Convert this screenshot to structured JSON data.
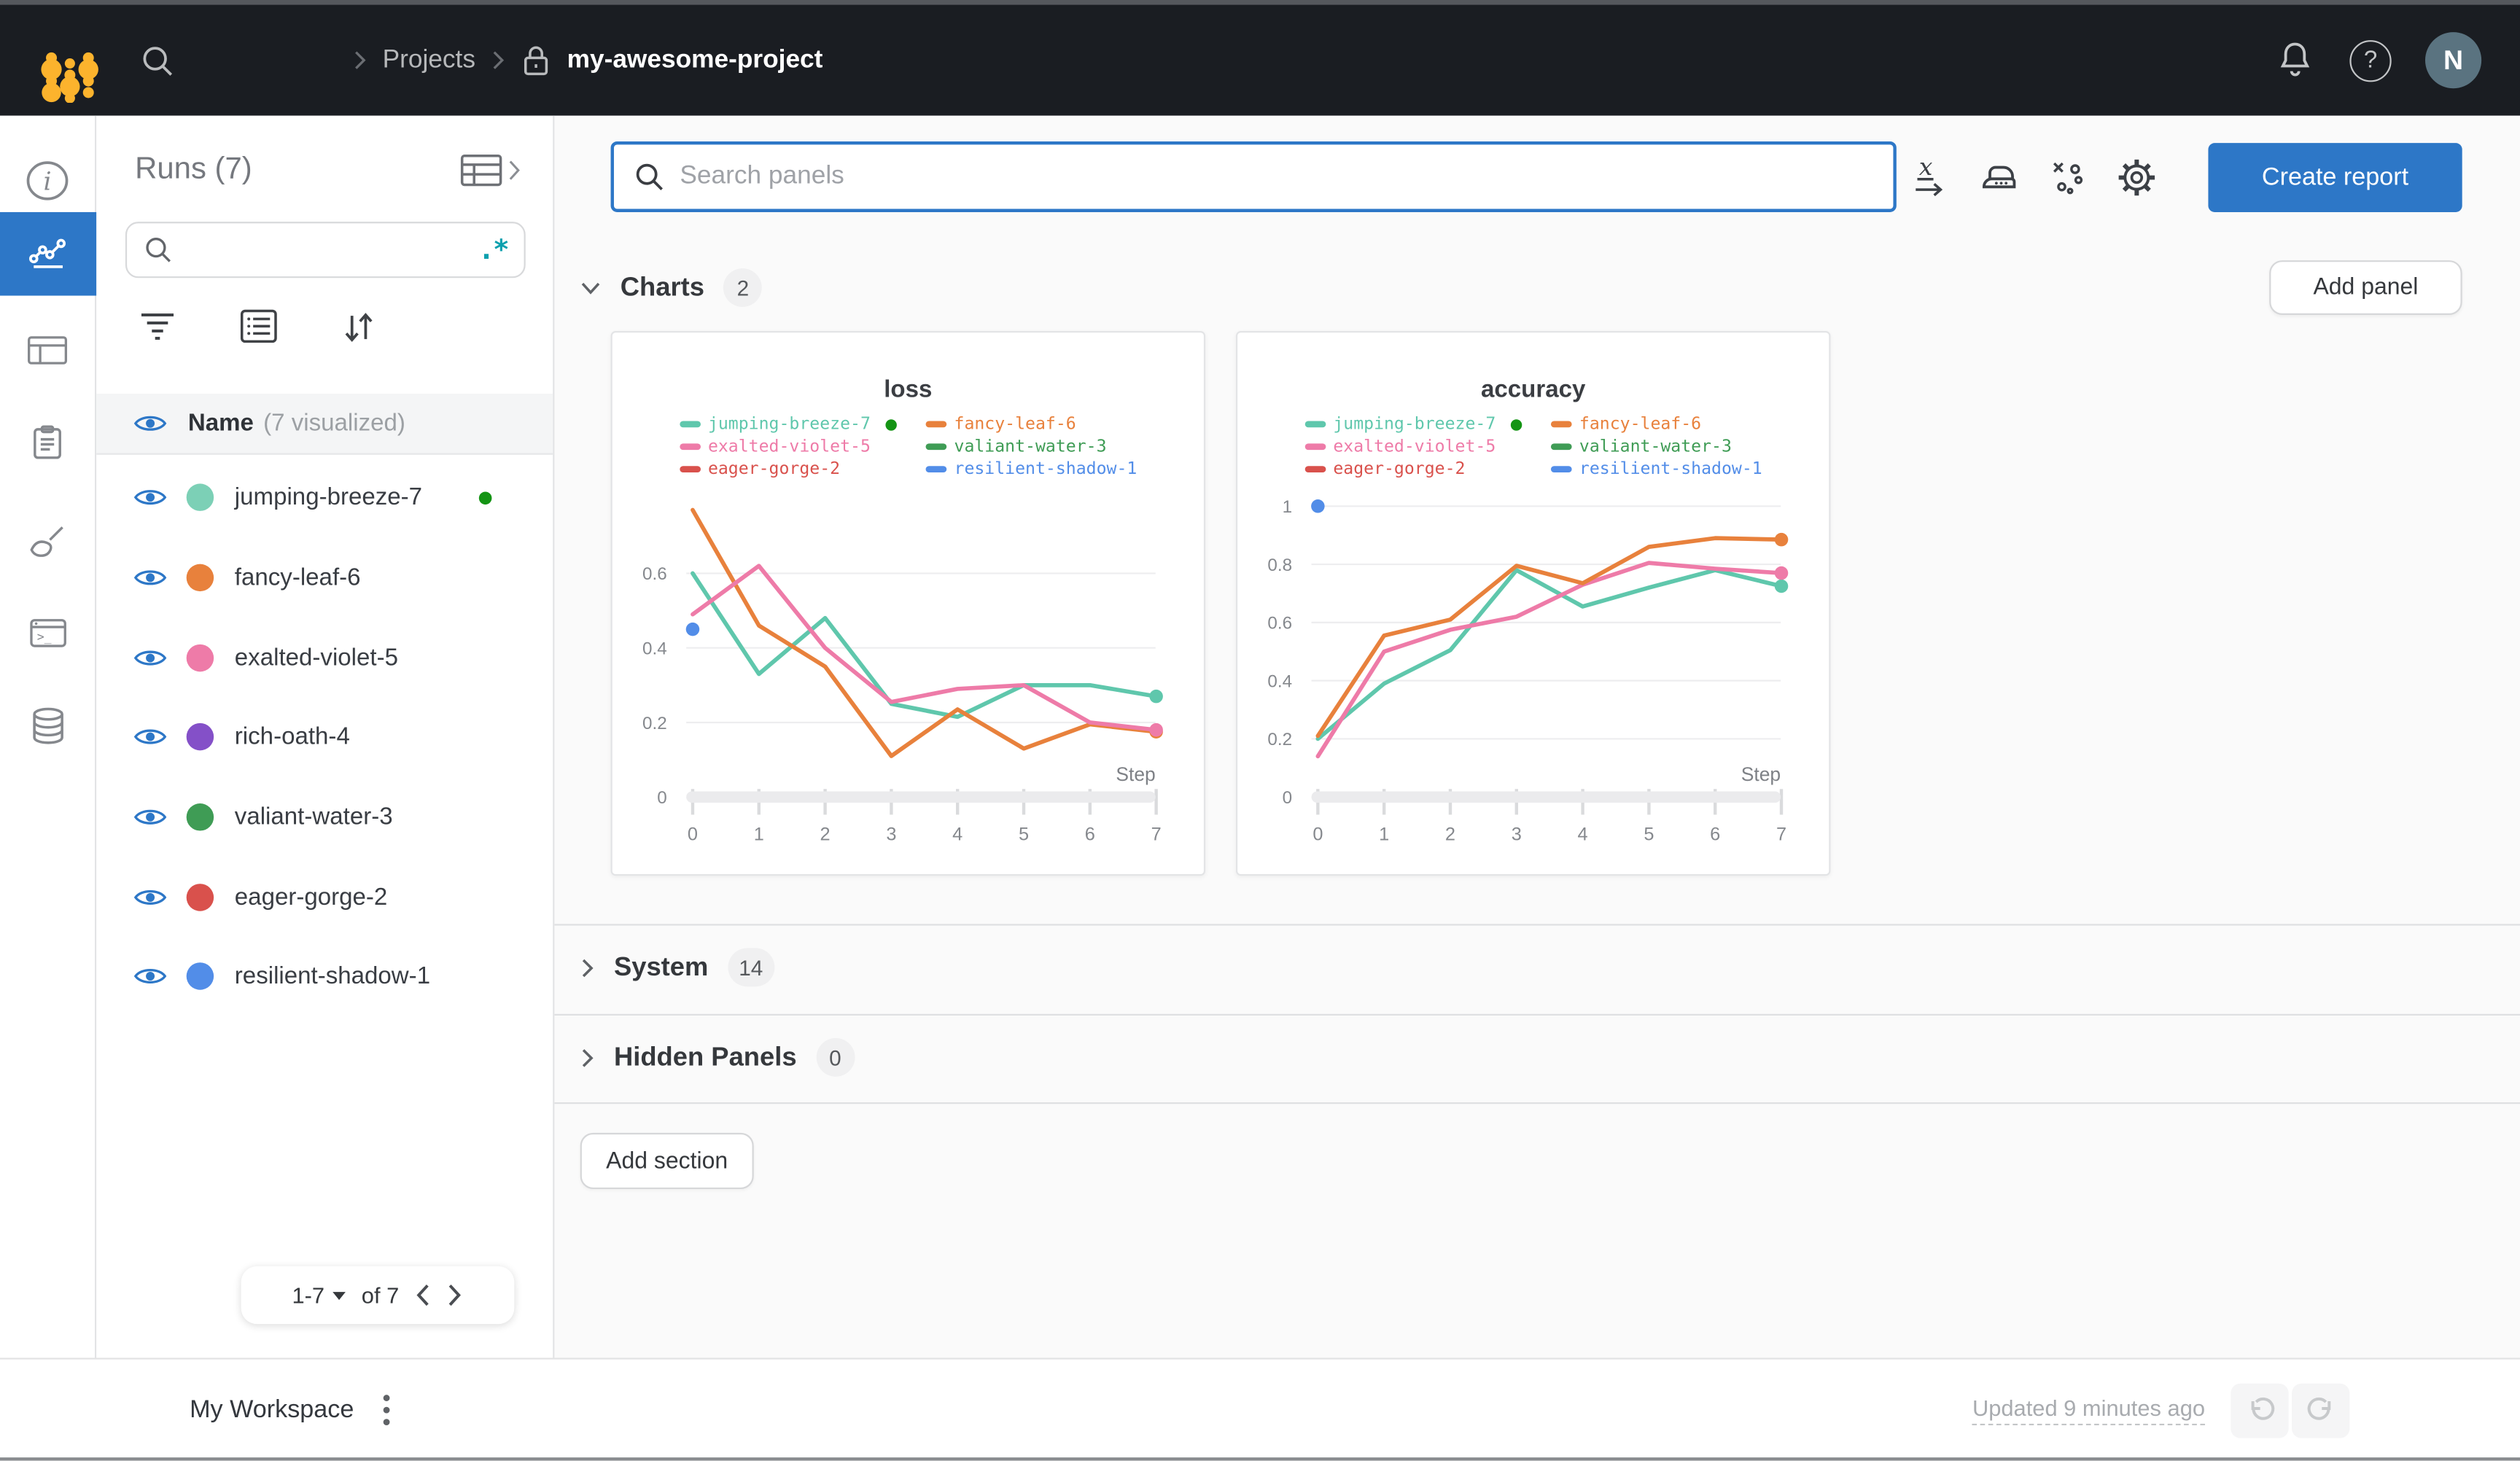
{
  "navbar": {
    "breadcrumb": {
      "projects": "Projects",
      "project": "my-awesome-project"
    },
    "avatar_initial": "N",
    "help_glyph": "?"
  },
  "colors": {
    "accent_blue": "#2d77c7",
    "navbar_bg": "#1a1d22",
    "logo_yellow": "#fcb32d",
    "regex_teal": "#0ca0ae",
    "active_run_green": "#149414",
    "avatar_bg": "#5a7380"
  },
  "sidebar": {
    "title": "Runs (7)",
    "search_placeholder": "",
    "regex_label": ".*",
    "header": {
      "name": "Name",
      "visualized": "(7 visualized)"
    },
    "runs": [
      {
        "name": "jumping-breeze-7",
        "color": "#7cd0b6",
        "active": true
      },
      {
        "name": "fancy-leaf-6",
        "color": "#e8813c",
        "active": false
      },
      {
        "name": "exalted-violet-5",
        "color": "#ee7ba8",
        "active": false
      },
      {
        "name": "rich-oath-4",
        "color": "#8450c8",
        "active": false
      },
      {
        "name": "valiant-water-3",
        "color": "#3f9c55",
        "active": false
      },
      {
        "name": "eager-gorge-2",
        "color": "#d9514c",
        "active": false
      },
      {
        "name": "resilient-shadow-1",
        "color": "#528de8",
        "active": false
      }
    ],
    "pagination": {
      "range": "1-7",
      "of": "of 7"
    }
  },
  "toolbar": {
    "search_placeholder": "Search panels",
    "create_report_label": "Create report"
  },
  "sections": {
    "charts": {
      "label": "Charts",
      "count": "2"
    },
    "system": {
      "label": "System",
      "count": "14"
    },
    "hidden": {
      "label": "Hidden Panels",
      "count": "0"
    },
    "add_panel_label": "Add panel",
    "add_section_label": "Add section"
  },
  "footer": {
    "workspace_label": "My Workspace",
    "updated_label": "Updated 9 minutes ago"
  },
  "chart_data": [
    {
      "type": "line",
      "title": "loss",
      "xlabel": "Step",
      "x": [
        0,
        1,
        2,
        3,
        4,
        5,
        6,
        7
      ],
      "ylim": [
        0,
        0.8
      ],
      "yticks": [
        0,
        0.2,
        0.4,
        0.6
      ],
      "grid": true,
      "legend_position": "top",
      "series": [
        {
          "name": "jumping-breeze-7",
          "color": "#5fc7ac",
          "active": true,
          "values": [
            0.6,
            0.33,
            0.48,
            0.25,
            0.215,
            0.3,
            0.3,
            0.27
          ]
        },
        {
          "name": "fancy-leaf-6",
          "color": "#e8813c",
          "values": [
            0.77,
            0.46,
            0.35,
            0.11,
            0.235,
            0.13,
            0.195,
            0.175
          ]
        },
        {
          "name": "exalted-violet-5",
          "color": "#ee7ba8",
          "values": [
            0.49,
            0.62,
            0.4,
            0.255,
            0.29,
            0.3,
            0.2,
            0.18
          ]
        },
        {
          "name": "valiant-water-3",
          "color": "#3f9c55",
          "values": []
        },
        {
          "name": "eager-gorge-2",
          "color": "#d9514c",
          "values": []
        },
        {
          "name": "resilient-shadow-1",
          "color": "#528de8",
          "values": [
            0.45
          ]
        }
      ]
    },
    {
      "type": "line",
      "title": "accuracy",
      "xlabel": "Step",
      "x": [
        0,
        1,
        2,
        3,
        4,
        5,
        6,
        7
      ],
      "ylim": [
        0,
        1.05
      ],
      "yticks": [
        0,
        0.2,
        0.4,
        0.6,
        0.8,
        1
      ],
      "grid": true,
      "legend_position": "top",
      "series": [
        {
          "name": "jumping-breeze-7",
          "color": "#5fc7ac",
          "active": true,
          "values": [
            0.2,
            0.39,
            0.505,
            0.78,
            0.655,
            0.72,
            0.78,
            0.725
          ]
        },
        {
          "name": "fancy-leaf-6",
          "color": "#e8813c",
          "values": [
            0.21,
            0.555,
            0.61,
            0.795,
            0.735,
            0.86,
            0.89,
            0.885
          ]
        },
        {
          "name": "exalted-violet-5",
          "color": "#ee7ba8",
          "values": [
            0.14,
            0.5,
            0.575,
            0.62,
            0.73,
            0.805,
            0.785,
            0.77
          ]
        },
        {
          "name": "valiant-water-3",
          "color": "#3f9c55",
          "values": []
        },
        {
          "name": "eager-gorge-2",
          "color": "#d9514c",
          "values": []
        },
        {
          "name": "resilient-shadow-1",
          "color": "#528de8",
          "values": [
            1.0
          ]
        }
      ]
    }
  ]
}
